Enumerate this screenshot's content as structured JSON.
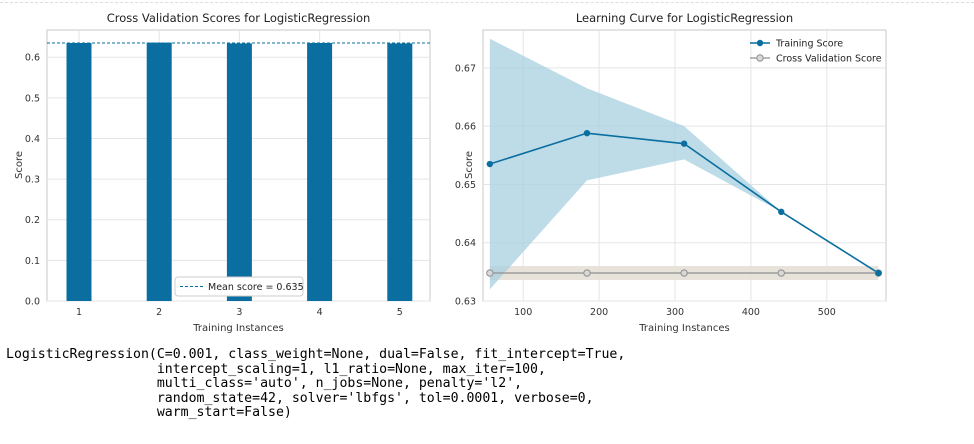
{
  "output_text": "LogisticRegression(C=0.001, class_weight=None, dual=False, fit_intercept=True,\n                   intercept_scaling=1, l1_ratio=None, max_iter=100,\n                   multi_class='auto', n_jobs=None, penalty='l2',\n                   random_state=42, solver='lbfgs', tol=0.0001, verbose=0,\n                   warm_start=False)",
  "chart_data": [
    {
      "type": "bar",
      "title": "Cross Validation Scores for LogisticRegression",
      "xlabel": "Training Instances",
      "ylabel": "Score",
      "categories": [
        "1",
        "2",
        "3",
        "4",
        "5"
      ],
      "values": [
        0.635,
        0.636,
        0.634,
        0.635,
        0.634
      ],
      "ylim": [
        0,
        0.635
      ],
      "yticks": [
        "0.0",
        "0.1",
        "0.2",
        "0.3",
        "0.4",
        "0.5",
        "0.6"
      ],
      "mean_score": 0.635,
      "legend": {
        "label": "Mean score = 0.635",
        "placement": "bottom-right"
      },
      "grid": true,
      "colors": {
        "bar": "#0a6fa0",
        "mean_line": "#0a6fa0"
      }
    },
    {
      "type": "line",
      "title": "Learning Curve for LogisticRegression",
      "xlabel": "Training Instances",
      "ylabel": "Score",
      "x": [
        56,
        184,
        312,
        440,
        568
      ],
      "xlim": [
        47,
        578
      ],
      "ylim": [
        0.63,
        0.6765
      ],
      "xticks": [
        "100",
        "200",
        "300",
        "400",
        "500"
      ],
      "yticks": [
        "0.63",
        "0.64",
        "0.65",
        "0.66",
        "0.67"
      ],
      "series": [
        {
          "name": "Training Score",
          "values": [
            0.6535,
            0.6588,
            0.657,
            0.6453,
            0.6348
          ],
          "upper": [
            0.675,
            0.6665,
            0.66,
            0.6453,
            0.6348
          ],
          "lower": [
            0.632,
            0.6507,
            0.6543,
            0.6453,
            0.6348
          ],
          "color": "#0a6fa0",
          "band_color": "#a8cfe0",
          "marker": "filled-circle"
        },
        {
          "name": "Cross Validation Score",
          "values": [
            0.6348,
            0.6348,
            0.6348,
            0.6348,
            0.6348
          ],
          "upper": [
            0.636,
            0.636,
            0.636,
            0.636,
            0.636
          ],
          "lower": [
            0.6336,
            0.6336,
            0.6336,
            0.6336,
            0.6336
          ],
          "color": "#909090",
          "band_color": "#e4e0d6",
          "marker": "hollow-circle"
        }
      ],
      "legend": {
        "placement": "top-right"
      },
      "grid": true
    }
  ]
}
